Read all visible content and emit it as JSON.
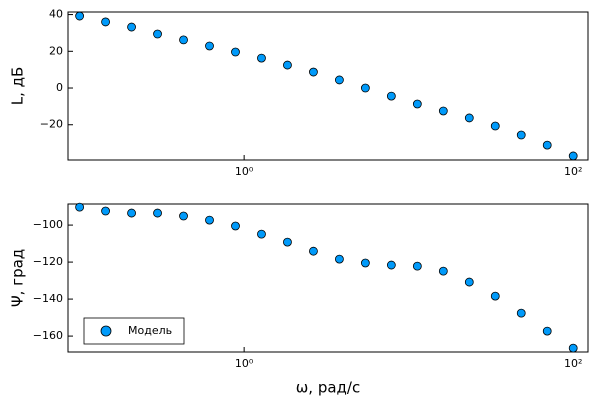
{
  "chart_data": [
    {
      "type": "scatter",
      "ylabel": "L, дБ",
      "x": [
        0.1,
        0.1438,
        0.2069,
        0.2976,
        0.4281,
        0.6158,
        0.8859,
        1.2743,
        1.833,
        2.637,
        3.793,
        5.456,
        7.848,
        11.29,
        16.24,
        23.36,
        33.6,
        48.33,
        69.52,
        100
      ],
      "series": [
        {
          "color": "#009afa",
          "values": [
            39.2,
            36,
            33.2,
            29.4,
            26.2,
            22.9,
            19.6,
            16.3,
            12.5,
            8.7,
            4.4,
            0,
            -4.4,
            -8.7,
            -12.5,
            -16.3,
            -20.7,
            -25.6,
            -31.1,
            -37
          ]
        }
      ],
      "xlim": [
        0.085,
        123
      ],
      "xscale": "log",
      "xticks": [
        {
          "value": 1,
          "label": "10⁰"
        },
        {
          "value": 100,
          "label": "10²"
        }
      ],
      "ylim": [
        -39.2,
        41.4
      ],
      "yticks": [
        {
          "value": -20,
          "label": "−20"
        },
        0,
        20,
        40
      ],
      "grid": false
    },
    {
      "type": "scatter",
      "ylabel": "Ψ, град",
      "xlabel": "ω, рад/с",
      "x": [
        0.1,
        0.1438,
        0.2069,
        0.2976,
        0.4281,
        0.6158,
        0.8859,
        1.2743,
        1.833,
        2.637,
        3.793,
        5.456,
        7.848,
        11.29,
        16.24,
        23.36,
        33.6,
        48.33,
        69.52,
        100
      ],
      "series": [
        {
          "name": "Модель",
          "color": "#009afa",
          "values": [
            -90.3,
            -92.4,
            -93.5,
            -93.5,
            -95.1,
            -97.3,
            -100.5,
            -104.9,
            -109.2,
            -114.1,
            -118.4,
            -120.5,
            -121.6,
            -122.2,
            -124.9,
            -130.8,
            -138.4,
            -147.6,
            -157.3,
            -166.5
          ]
        }
      ],
      "xlim": [
        0.085,
        123
      ],
      "xscale": "log",
      "xticks": [
        {
          "value": 1,
          "label": "10⁰"
        },
        {
          "value": 100,
          "label": "10²"
        }
      ],
      "ylim": [
        -168.6,
        -88.6
      ],
      "yticks": [
        {
          "value": -160,
          "label": "−160"
        },
        {
          "value": -140,
          "label": "−140"
        },
        {
          "value": -120,
          "label": "−120"
        },
        {
          "value": -100,
          "label": "−100"
        }
      ],
      "grid": false,
      "legend": "lower left"
    }
  ]
}
